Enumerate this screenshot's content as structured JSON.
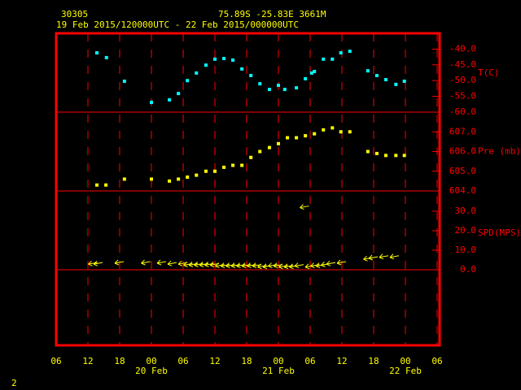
{
  "header": {
    "station": "30305",
    "location": "75.89S   -25.83E   3661M",
    "period": "19 Feb 2015/120000UTC - 22 Feb 2015/000000UTC",
    "page_number": "2"
  },
  "x_axis": {
    "xlim": [
      6,
      78
    ],
    "xticks": [
      {
        "value": 6,
        "label": "06"
      },
      {
        "value": 12,
        "label": "12"
      },
      {
        "value": 18,
        "label": "18"
      },
      {
        "value": 24,
        "label": "00"
      },
      {
        "value": 30,
        "label": "06"
      },
      {
        "value": 36,
        "label": "12"
      },
      {
        "value": 42,
        "label": "18"
      },
      {
        "value": 48,
        "label": "00"
      },
      {
        "value": 54,
        "label": "06"
      },
      {
        "value": 60,
        "label": "12"
      },
      {
        "value": 66,
        "label": "18"
      },
      {
        "value": 72,
        "label": "00"
      },
      {
        "value": 78,
        "label": "06"
      }
    ],
    "date_labels": [
      {
        "value": 24,
        "label": "20 Feb"
      },
      {
        "value": 48,
        "label": "21 Feb"
      },
      {
        "value": 72,
        "label": "22 Feb"
      }
    ]
  },
  "chart_data": [
    {
      "type": "scatter",
      "ylabel": "T(C)",
      "color": "#00ffff",
      "ylim": [
        -60,
        -35
      ],
      "yticks": [
        {
          "value": -40,
          "label": "-40.0"
        },
        {
          "value": -45,
          "label": "-45.0"
        },
        {
          "value": -50,
          "label": "-50.0"
        },
        {
          "value": -55,
          "label": "-55.0"
        },
        {
          "value": -60,
          "label": "-60.0"
        }
      ],
      "x": [
        13.7,
        15.5,
        18.9,
        24,
        27.4,
        29.1,
        30.8,
        32.5,
        34.3,
        36,
        37.7,
        39.4,
        41.1,
        42.8,
        44.5,
        46.3,
        48,
        49.2,
        51.4,
        53.1,
        54.3,
        54.8,
        56.5,
        58.2,
        59.8,
        61.5,
        64.9,
        66.6,
        68.3,
        70.2,
        71.8
      ],
      "values": [
        -41.2,
        -42.7,
        -50.2,
        -56.9,
        -56.1,
        -54.1,
        -50,
        -47.6,
        -45.1,
        -43.2,
        -43,
        -43.5,
        -46.3,
        -48.4,
        -51,
        -52.8,
        -51.5,
        -52.8,
        -52.3,
        -49.4,
        -47.6,
        -47.1,
        -43.2,
        -43.2,
        -41.2,
        -40.7,
        -46.9,
        -48.4,
        -49.7,
        -51.2,
        -50.2
      ]
    },
    {
      "type": "scatter",
      "ylabel": "Pre (mb)",
      "color": "#ffff00",
      "ylim": [
        604,
        608
      ],
      "yticks": [
        {
          "value": 607,
          "label": "607.0"
        },
        {
          "value": 606,
          "label": "606.0"
        },
        {
          "value": 605,
          "label": "605.0"
        },
        {
          "value": 604,
          "label": "604.0"
        }
      ],
      "x": [
        13.7,
        15.4,
        18.9,
        24,
        27.4,
        29.1,
        30.8,
        32.5,
        34.3,
        36,
        37.7,
        39.4,
        41.1,
        42.8,
        44.5,
        46.3,
        48,
        49.7,
        51.4,
        53.1,
        54.8,
        56.5,
        58.2,
        59.8,
        61.5,
        64.9,
        66.6,
        68.3,
        70.2,
        71.8
      ],
      "values": [
        604.3,
        604.3,
        604.6,
        604.6,
        604.5,
        604.6,
        604.7,
        604.8,
        605,
        605,
        605.2,
        605.3,
        605.3,
        605.7,
        606,
        606.2,
        606.4,
        606.7,
        606.7,
        606.8,
        606.9,
        607.1,
        607.2,
        607,
        607,
        606,
        605.9,
        605.8,
        605.8,
        605.8
      ]
    },
    {
      "type": "wind",
      "ylabel": "SPD(MPS)",
      "color": "#ffff00",
      "ylim": [
        -38.75,
        40.4
      ],
      "yticks": [
        {
          "value": 30,
          "label": "30.0"
        },
        {
          "value": 20,
          "label": "20.0"
        },
        {
          "value": 10,
          "label": "10.0"
        },
        {
          "value": 0,
          "label": "0.0"
        }
      ],
      "x": [
        13,
        14,
        18,
        23,
        26,
        28,
        30,
        31,
        32,
        33,
        34,
        35,
        36,
        37,
        38,
        39,
        40,
        41,
        42,
        43,
        44,
        45,
        46,
        47,
        48,
        49,
        50,
        51,
        52,
        53,
        54,
        55,
        56,
        57,
        58,
        60,
        65,
        66,
        68,
        70
      ],
      "values": [
        2,
        2,
        2.5,
        2.5,
        2.5,
        2,
        2,
        1.5,
        1.5,
        1.5,
        1.5,
        1.5,
        1.5,
        1,
        1,
        1,
        1,
        1,
        1,
        1,
        1,
        0.5,
        0.5,
        1,
        1,
        0.5,
        0.5,
        0.5,
        1,
        31,
        0.5,
        1,
        1,
        1.5,
        2,
        2.5,
        4.5,
        5,
        5.5,
        5.5
      ]
    }
  ]
}
